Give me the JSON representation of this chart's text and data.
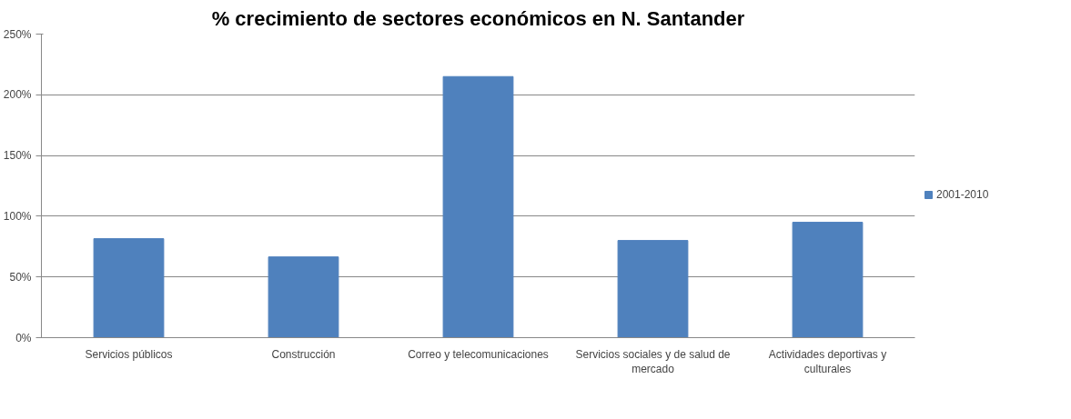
{
  "chart_data": {
    "type": "bar",
    "title": "% crecimiento de sectores económicos en N. Santander",
    "categories": [
      "Servicios públicos",
      "Construcción",
      "Correo y telecomunicaciones",
      "Servicios sociales y de salud de mercado",
      "Actividades deportivas y culturales"
    ],
    "series": [
      {
        "name": "2001-2010",
        "color": "#4f81bd",
        "values": [
          81.5,
          66.5,
          215,
          80,
          95
        ]
      }
    ],
    "ylim": [
      0,
      250
    ],
    "yticks": [
      {
        "value": 0,
        "label": "0%"
      },
      {
        "value": 50,
        "label": "50%"
      },
      {
        "value": 100,
        "label": "100%"
      },
      {
        "value": 150,
        "label": "150%"
      },
      {
        "value": 200,
        "label": "200%"
      },
      {
        "value": 250,
        "label": "250%"
      }
    ],
    "grid": "y",
    "legend": "right"
  }
}
